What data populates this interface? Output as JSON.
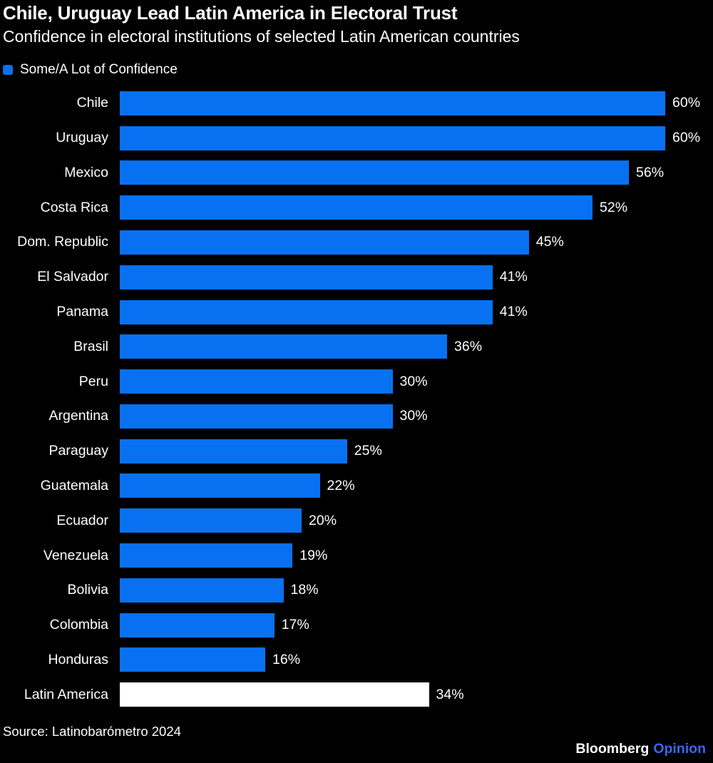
{
  "header": {
    "title": "Chile, Uruguay Lead Latin America in Electoral Trust",
    "subtitle": "Confidence in electoral institutions of selected Latin American countries"
  },
  "legend": {
    "label": "Some/A Lot of Confidence"
  },
  "colors": {
    "bar_blue": "#0871F2",
    "highlight_bar": "#ffffff",
    "background": "#000000",
    "text": "#ffffff",
    "brand_accent": "#3B66F0"
  },
  "chart_data": {
    "type": "bar",
    "orientation": "horizontal",
    "title": "Chile, Uruguay Lead Latin America in Electoral Trust",
    "subtitle": "Confidence in electoral institutions of selected Latin American countries",
    "legend_entries": [
      "Some/A Lot of Confidence"
    ],
    "legend_position": "top-left",
    "grid": false,
    "xlim": [
      0,
      60
    ],
    "value_suffix": "%",
    "categories": [
      "Chile",
      "Uruguay",
      "Mexico",
      "Costa Rica",
      "Dom. Republic",
      "El Salvador",
      "Panama",
      "Brasil",
      "Peru",
      "Argentina",
      "Paraguay",
      "Guatemala",
      "Ecuador",
      "Venezuela",
      "Bolivia",
      "Colombia",
      "Honduras",
      "Latin America"
    ],
    "values": [
      60,
      60,
      56,
      52,
      45,
      41,
      41,
      36,
      30,
      30,
      25,
      22,
      20,
      19,
      18,
      17,
      16,
      34
    ],
    "value_labels": [
      "60%",
      "60%",
      "56%",
      "52%",
      "45%",
      "41%",
      "41%",
      "36%",
      "30%",
      "30%",
      "25%",
      "22%",
      "20%",
      "19%",
      "18%",
      "17%",
      "16%",
      "34%"
    ],
    "highlight_category": "Latin America"
  },
  "footer": {
    "source": "Source: Latinobarómetro 2024",
    "brand": "Bloomberg",
    "brand_suffix": "Opinion"
  }
}
